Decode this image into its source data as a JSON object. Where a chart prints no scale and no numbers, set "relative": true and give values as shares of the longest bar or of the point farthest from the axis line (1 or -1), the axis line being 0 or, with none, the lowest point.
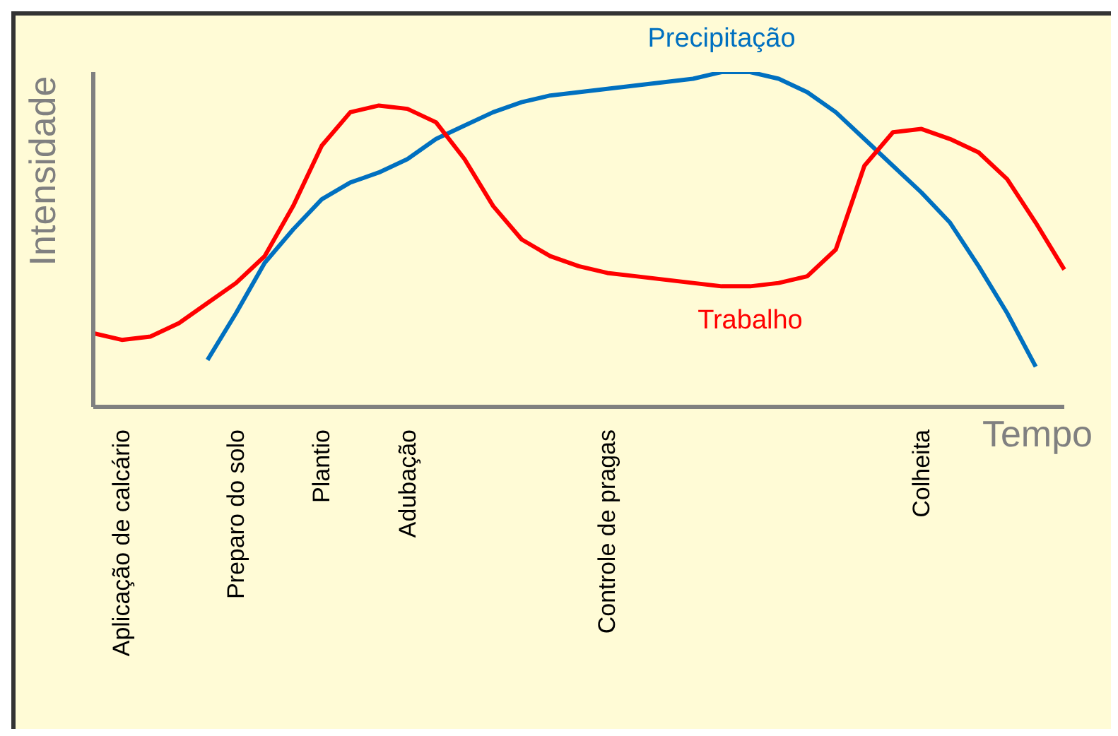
{
  "chart_data": {
    "type": "line",
    "relative": true,
    "xlabel": "Tempo",
    "ylabel": "Intensidade",
    "legend": false,
    "grid": false,
    "categories": [
      null,
      "Aplicação de calcário",
      null,
      null,
      null,
      "Preparo do solo",
      null,
      null,
      "Plantio",
      null,
      null,
      "Adubação",
      null,
      null,
      null,
      null,
      null,
      null,
      "Controle de pragas",
      null,
      null,
      null,
      null,
      null,
      null,
      null,
      null,
      null,
      null,
      "Colheita",
      null,
      null,
      null,
      null,
      null
    ],
    "series": [
      {
        "name": "Precipitação",
        "color": "#0070c0",
        "values": [
          null,
          null,
          null,
          null,
          0.14,
          0.28,
          0.43,
          0.53,
          0.62,
          0.67,
          0.7,
          0.74,
          0.8,
          0.84,
          0.88,
          0.91,
          0.93,
          0.94,
          0.95,
          0.96,
          0.97,
          0.98,
          1.0,
          1.0,
          0.98,
          0.94,
          0.88,
          0.8,
          0.72,
          0.64,
          0.55,
          0.42,
          0.28,
          0.12,
          null
        ]
      },
      {
        "name": "Trabalho",
        "color": "#ff0000",
        "values": [
          0.22,
          0.2,
          0.21,
          0.25,
          0.31,
          0.37,
          0.45,
          0.6,
          0.78,
          0.88,
          0.9,
          0.89,
          0.85,
          0.74,
          0.6,
          0.5,
          0.45,
          0.42,
          0.4,
          0.39,
          0.38,
          0.37,
          0.36,
          0.36,
          0.37,
          0.39,
          0.47,
          0.72,
          0.82,
          0.83,
          0.8,
          0.76,
          0.68,
          0.55,
          0.41
        ]
      }
    ]
  }
}
